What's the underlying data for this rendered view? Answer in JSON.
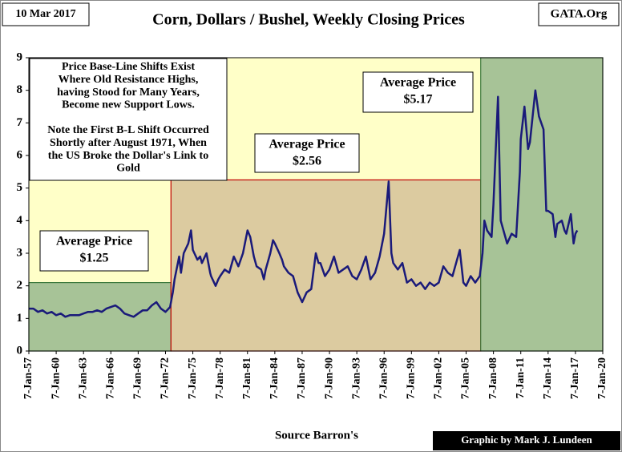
{
  "chart_data": {
    "type": "line",
    "title": "Corn, Dollars / Bushel, Weekly Closing Prices",
    "date_label": "10 Mar 2017",
    "site": "GATA.Org",
    "source": "Source Barron's",
    "credit": "Graphic by Mark J. Lundeen",
    "note": [
      "Price Base-Line Shifts Exist",
      "Where Old Resistance Highs,",
      "having Stood for Many Years,",
      "Become new Support Lows.",
      "",
      "Note the First B-L Shift Occurred",
      "Shortly after August 1971, When",
      "the US Broke the Dollar's Link to",
      "Gold"
    ],
    "regions": [
      {
        "x0": 1957,
        "x1": 1972.6,
        "top": 2.1,
        "color": "#a7c397",
        "border": "#3d7a3d",
        "label": [
          "Average Price",
          "$1.25"
        ]
      },
      {
        "x0": 1972.6,
        "x1": 2006.6,
        "top": 5.25,
        "color": "#dccba0",
        "border": "#c00000",
        "label": [
          "Average Price",
          "$2.56"
        ]
      },
      {
        "x0": 2006.6,
        "x1": 2020,
        "top": 9,
        "color": "#a7c397",
        "border": "#3d7a3d",
        "label": [
          "Average Price",
          "$5.17"
        ]
      }
    ],
    "xlim": [
      1957,
      2020
    ],
    "ylim": [
      0,
      9
    ],
    "yticks": [
      0,
      1,
      2,
      3,
      4,
      5,
      6,
      7,
      8,
      9
    ],
    "xticks": [
      {
        "value": 1957,
        "label": "7-Jan-57"
      },
      {
        "value": 1960,
        "label": "7-Jan-60"
      },
      {
        "value": 1963,
        "label": "7-Jan-63"
      },
      {
        "value": 1966,
        "label": "7-Jan-66"
      },
      {
        "value": 1969,
        "label": "7-Jan-69"
      },
      {
        "value": 1972,
        "label": "7-Jan-72"
      },
      {
        "value": 1975,
        "label": "7-Jan-75"
      },
      {
        "value": 1978,
        "label": "7-Jan-78"
      },
      {
        "value": 1981,
        "label": "7-Jan-81"
      },
      {
        "value": 1984,
        "label": "7-Jan-84"
      },
      {
        "value": 1987,
        "label": "7-Jan-87"
      },
      {
        "value": 1990,
        "label": "7-Jan-90"
      },
      {
        "value": 1993,
        "label": "7-Jan-93"
      },
      {
        "value": 1996,
        "label": "7-Jan-96"
      },
      {
        "value": 1999,
        "label": "7-Jan-99"
      },
      {
        "value": 2002,
        "label": "7-Jan-02"
      },
      {
        "value": 2005,
        "label": "7-Jan-05"
      },
      {
        "value": 2008,
        "label": "7-Jan-08"
      },
      {
        "value": 2011,
        "label": "7-Jan-11"
      },
      {
        "value": 2014,
        "label": "7-Jan-14"
      },
      {
        "value": 2017,
        "label": "7-Jan-17"
      },
      {
        "value": 2020,
        "label": "7-Jan-20"
      }
    ],
    "series": [
      {
        "color": "#1a1a7a",
        "x": [
          1957,
          1957.5,
          1958,
          1958.5,
          1959,
          1959.5,
          1960,
          1960.5,
          1961,
          1961.5,
          1962,
          1962.5,
          1963,
          1963.5,
          1964,
          1964.5,
          1965,
          1965.5,
          1966,
          1966.5,
          1967,
          1967.5,
          1968,
          1968.5,
          1969,
          1969.5,
          1970,
          1970.5,
          1971,
          1971.5,
          1972,
          1972.5,
          1972.8,
          1973,
          1973.5,
          1973.7,
          1974,
          1974.5,
          1974.8,
          1975,
          1975.5,
          1975.8,
          1976,
          1976.5,
          1976.9,
          1977,
          1977.5,
          1977.8,
          1978,
          1978.5,
          1979,
          1979.5,
          1980,
          1980.5,
          1981,
          1981.3,
          1981.7,
          1982,
          1982.5,
          1982.8,
          1983,
          1983.5,
          1983.8,
          1984,
          1984.5,
          1984.8,
          1985,
          1985.5,
          1986,
          1986.5,
          1987,
          1987.5,
          1988,
          1988.5,
          1988.8,
          1989,
          1989.5,
          1990,
          1990.5,
          1991,
          1991.5,
          1992,
          1992.5,
          1993,
          1993.5,
          1994,
          1994.5,
          1995,
          1995.5,
          1996,
          1996.5,
          1996.8,
          1997,
          1997.5,
          1998,
          1998.5,
          1999,
          1999.5,
          2000,
          2000.5,
          2001,
          2001.5,
          2002,
          2002.5,
          2003,
          2003.5,
          2004,
          2004.3,
          2004.7,
          2005,
          2005.5,
          2006,
          2006.5,
          2006.8,
          2007,
          2007.3,
          2007.8,
          2008,
          2008.5,
          2008.8,
          2009,
          2009.5,
          2010,
          2010.5,
          2010.9,
          2011,
          2011.4,
          2011.8,
          2012,
          2012.6,
          2013,
          2013.5,
          2013.8,
          2014,
          2014.5,
          2014.8,
          2015,
          2015.5,
          2015.8,
          2016,
          2016.5,
          2016.8,
          2017,
          2017.2
        ],
        "values": [
          1.3,
          1.3,
          1.2,
          1.25,
          1.15,
          1.2,
          1.1,
          1.15,
          1.05,
          1.1,
          1.1,
          1.1,
          1.15,
          1.2,
          1.2,
          1.25,
          1.2,
          1.3,
          1.35,
          1.4,
          1.3,
          1.15,
          1.1,
          1.05,
          1.15,
          1.25,
          1.25,
          1.4,
          1.5,
          1.3,
          1.2,
          1.35,
          1.8,
          2.2,
          2.9,
          2.4,
          3.0,
          3.3,
          3.7,
          3.1,
          2.8,
          2.9,
          2.7,
          3.0,
          2.4,
          2.3,
          2.0,
          2.2,
          2.3,
          2.5,
          2.4,
          2.9,
          2.6,
          3.0,
          3.7,
          3.5,
          2.9,
          2.6,
          2.5,
          2.2,
          2.5,
          3.0,
          3.4,
          3.3,
          3.0,
          2.8,
          2.6,
          2.4,
          2.3,
          1.8,
          1.5,
          1.8,
          1.9,
          3.0,
          2.7,
          2.7,
          2.3,
          2.5,
          2.9,
          2.4,
          2.5,
          2.6,
          2.3,
          2.2,
          2.5,
          2.9,
          2.2,
          2.4,
          2.9,
          3.6,
          5.2,
          3.0,
          2.7,
          2.5,
          2.7,
          2.1,
          2.2,
          2.0,
          2.1,
          1.9,
          2.1,
          2.0,
          2.1,
          2.6,
          2.4,
          2.3,
          2.8,
          3.1,
          2.1,
          2.0,
          2.3,
          2.1,
          2.3,
          3.0,
          4.0,
          3.7,
          3.5,
          4.5,
          7.8,
          4.0,
          3.8,
          3.3,
          3.6,
          3.5,
          5.5,
          6.5,
          7.5,
          6.2,
          6.4,
          8.0,
          7.2,
          6.8,
          4.3,
          4.3,
          4.2,
          3.5,
          3.9,
          4.0,
          3.7,
          3.6,
          4.2,
          3.3,
          3.6,
          3.7
        ]
      }
    ]
  }
}
